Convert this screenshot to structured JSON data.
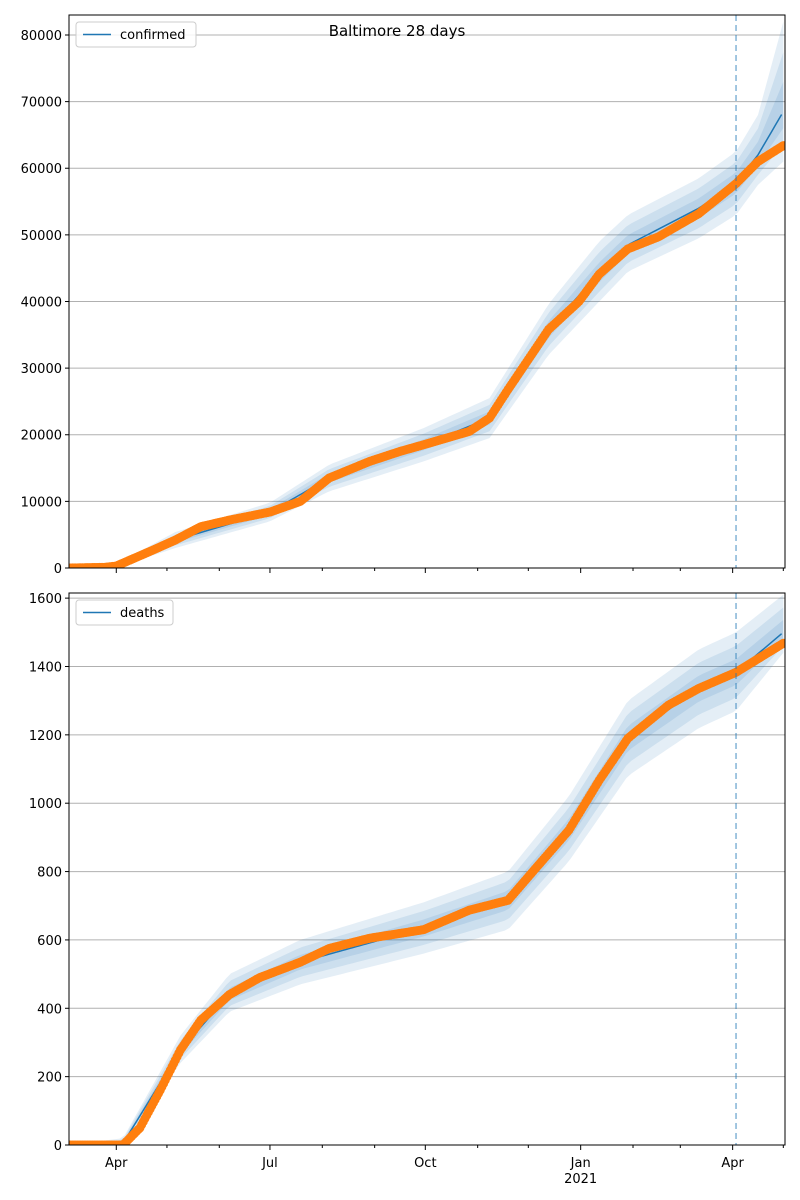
{
  "chart_data": [
    {
      "type": "line",
      "title": "Baltimore 28 days",
      "legend": {
        "label": "confirmed",
        "placement": "top-left"
      },
      "xlim": [
        "2020-03-04",
        "2021-05-02"
      ],
      "ylim": [
        0,
        83000
      ],
      "yticks": [
        0,
        10000,
        20000,
        30000,
        40000,
        50000,
        60000,
        70000,
        80000
      ],
      "grid": "y",
      "forecast_start": "2021-04-03",
      "observed": [
        [
          "2020-03-04",
          0
        ],
        [
          "2020-03-25",
          100
        ],
        [
          "2020-04-01",
          300
        ],
        [
          "2020-04-21",
          2500
        ],
        [
          "2020-05-06",
          4200
        ],
        [
          "2020-05-21",
          6200
        ],
        [
          "2020-06-07",
          7200
        ],
        [
          "2020-07-01",
          8400
        ],
        [
          "2020-07-19",
          10000
        ],
        [
          "2020-08-05",
          13500
        ],
        [
          "2020-08-29",
          16000
        ],
        [
          "2020-09-16",
          17500
        ],
        [
          "2020-09-30",
          18500
        ],
        [
          "2020-10-27",
          20500
        ],
        [
          "2020-11-08",
          22500
        ],
        [
          "2020-11-19",
          26800
        ],
        [
          "2020-12-01",
          31300
        ],
        [
          "2020-12-13",
          35800
        ],
        [
          "2020-12-31",
          40000
        ],
        [
          "2021-01-12",
          44100
        ],
        [
          "2021-01-29",
          47900
        ],
        [
          "2021-02-16",
          49700
        ],
        [
          "2021-03-12",
          53200
        ],
        [
          "2021-04-03",
          57700
        ],
        [
          "2021-04-16",
          61000
        ],
        [
          "2021-05-01",
          63400
        ]
      ],
      "model": [
        [
          "2020-03-04",
          0,
          0,
          0
        ],
        [
          "2020-04-01",
          300,
          100,
          600
        ],
        [
          "2020-05-06",
          4200,
          3000,
          5400
        ],
        [
          "2020-07-01",
          8400,
          7000,
          9800
        ],
        [
          "2020-08-05",
          13500,
          11500,
          15500
        ],
        [
          "2020-09-30",
          18500,
          16000,
          21000
        ],
        [
          "2020-11-08",
          22500,
          19500,
          25500
        ],
        [
          "2020-12-13",
          35800,
          32000,
          39600
        ],
        [
          "2021-01-12",
          44300,
          40000,
          49000
        ],
        [
          "2021-01-29",
          48500,
          44500,
          53000
        ],
        [
          "2021-03-12",
          54000,
          49500,
          58500
        ],
        [
          "2021-04-03",
          57800,
          53000,
          62500
        ],
        [
          "2021-04-16",
          62000,
          57500,
          68000
        ],
        [
          "2021-05-01",
          68500,
          61000,
          82000
        ]
      ]
    },
    {
      "type": "line",
      "legend": {
        "label": "deaths",
        "placement": "top-left"
      },
      "xlim": [
        "2020-03-04",
        "2021-05-02"
      ],
      "ylim": [
        0,
        1615
      ],
      "yticks": [
        0,
        200,
        400,
        600,
        800,
        1000,
        1200,
        1400,
        1600
      ],
      "xticks": [
        "Apr",
        "Jul",
        "Oct",
        "Jan",
        "Apr"
      ],
      "xtick_dates": [
        "2020-04-01",
        "2020-07-01",
        "2020-10-01",
        "2021-01-01",
        "2021-04-01"
      ],
      "year_label": "2021",
      "grid": "y",
      "forecast_start": "2021-04-03",
      "observed": [
        [
          "2020-03-04",
          0
        ],
        [
          "2020-04-05",
          0
        ],
        [
          "2020-04-15",
          50
        ],
        [
          "2020-04-27",
          160
        ],
        [
          "2020-05-09",
          278
        ],
        [
          "2020-05-21",
          365
        ],
        [
          "2020-06-07",
          440
        ],
        [
          "2020-06-25",
          490
        ],
        [
          "2020-07-19",
          535
        ],
        [
          "2020-08-05",
          575
        ],
        [
          "2020-08-29",
          605
        ],
        [
          "2020-09-30",
          630
        ],
        [
          "2020-10-27",
          687
        ],
        [
          "2020-11-19",
          716
        ],
        [
          "2020-12-07",
          819
        ],
        [
          "2020-12-25",
          921
        ],
        [
          "2021-01-12",
          1067
        ],
        [
          "2021-01-29",
          1190
        ],
        [
          "2021-02-22",
          1287
        ],
        [
          "2021-03-12",
          1336
        ],
        [
          "2021-04-03",
          1383
        ],
        [
          "2021-05-01",
          1468
        ]
      ],
      "model": [
        [
          "2020-03-04",
          0,
          0,
          0
        ],
        [
          "2020-04-05",
          5,
          0,
          20
        ],
        [
          "2020-05-09",
          278,
          240,
          320
        ],
        [
          "2020-06-07",
          440,
          390,
          500
        ],
        [
          "2020-07-19",
          535,
          470,
          600
        ],
        [
          "2020-09-30",
          635,
          560,
          710
        ],
        [
          "2020-11-19",
          716,
          630,
          800
        ],
        [
          "2020-12-25",
          921,
          830,
          1020
        ],
        [
          "2021-01-29",
          1190,
          1080,
          1300
        ],
        [
          "2021-03-12",
          1336,
          1220,
          1450
        ],
        [
          "2021-04-03",
          1383,
          1270,
          1500
        ],
        [
          "2021-05-01",
          1500,
          1440,
          1610
        ]
      ]
    }
  ]
}
